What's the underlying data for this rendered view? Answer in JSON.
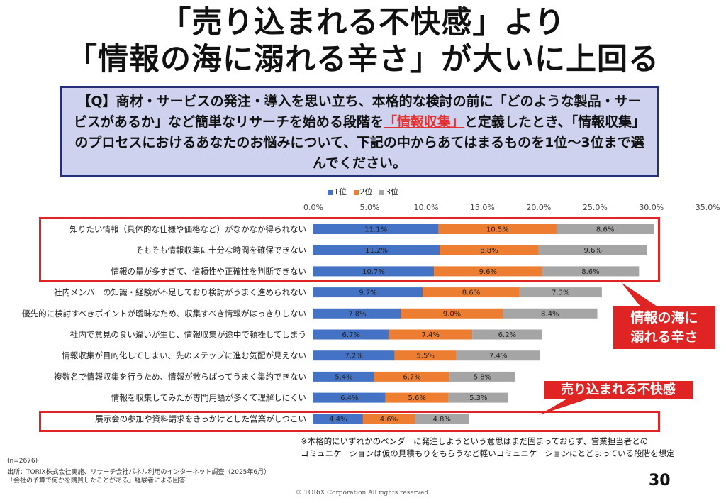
{
  "title_line1": "「売り込まれる不快感」より",
  "title_line2": "「情報の海に溺れる辛さ」が大いに上回る",
  "question": {
    "part1": "【Q】商材・サービスの発注・導入を思い立ち、本格的な検討の前に「どのような製品・サービスがあるか」など簡単なリサーチを始める段階を",
    "highlight": "「情報収集」",
    "part2": "と定義したとき、「情報収集」のプロセスにおけるあなたのお悩みについて、下記の中からあてはまるものを1位～3位まで選んでください。"
  },
  "colors": {
    "rank1": "#4472c4",
    "rank2": "#ed7d31",
    "rank3": "#a5a5a5",
    "highlight_red": "#e02424"
  },
  "callouts": {
    "info_line1": "情報の海に",
    "info_line2": "溺れる辛さ",
    "sales": "売り込まれる不快感"
  },
  "note_line1": "※本格的にいずれかのベンダーに発注しようという意思はまだ固まっておらず、営業担当者との",
  "note_line2": "コミュニケーションは仮の見積もりをもらうなど軽いコミュニケーションにとどまっている段階を想定",
  "sample_size": "(n=2676)",
  "source_line1": "出所：TORiX株式会社実施、リサーチ会社パネル利用のインターネット調査（2025年6月）",
  "source_line2": "「会社の予算で何かを購買したことがある」経験者による回答",
  "page_number": "30",
  "copyright": "© TORiX Corporation All rights reserved.",
  "chart_data": {
    "type": "bar",
    "orientation": "horizontal",
    "stacked": true,
    "xlim": [
      0,
      35
    ],
    "x_ticks": [
      "0.0%",
      "5.0%",
      "10.0%",
      "15.0%",
      "20.0%",
      "25.0%",
      "30.0%",
      "35.0%"
    ],
    "legend_position": "top",
    "categories": [
      "知りたい情報（具体的な仕様や価格など）がなかなか得られない",
      "そもそも情報収集に十分な時間を確保できない",
      "情報の量が多すぎて、信頼性や正確性を判断できない",
      "社内メンバーの知識・経験が不足しており検討がうまく進められない",
      "優先的に検討すべきポイントが曖昧なため、収集すべき情報がはっきりしない",
      "社内で意見の食い違いが生じ、情報収集が途中で頓挫してしまう",
      "情報収集が目的化してしまい、先のステップに進む気配が見えない",
      "複数名で情報収集を行うため、情報が散らばってうまく集約できない",
      "情報を収集してみたが専門用語が多くて理解しにくい",
      "展示会の参加や資料請求をきっかけとした営業がしつこい"
    ],
    "series": [
      {
        "name": "1位",
        "color": "#4472c4",
        "values": [
          11.1,
          11.2,
          10.7,
          9.7,
          7.8,
          6.7,
          7.2,
          5.4,
          6.4,
          4.4
        ],
        "labels": [
          "11.1%",
          "11.2%",
          "10.7%",
          "9.7%",
          "7.8%",
          "6.7%",
          "7.2%",
          "5.4%",
          "6.4%",
          "4.4%"
        ]
      },
      {
        "name": "2位",
        "color": "#ed7d31",
        "values": [
          10.5,
          8.8,
          9.6,
          8.6,
          9.0,
          7.4,
          5.5,
          6.7,
          5.6,
          4.6
        ],
        "labels": [
          "10.5%",
          "8.8%",
          "9.6%",
          "8.6%",
          "9.0%",
          "7.4%",
          "5.5%",
          "6.7%",
          "5.6%",
          "4.6%"
        ]
      },
      {
        "name": "3位",
        "color": "#a5a5a5",
        "values": [
          8.6,
          9.6,
          8.6,
          7.3,
          8.4,
          6.2,
          7.4,
          5.8,
          5.3,
          4.8
        ],
        "labels": [
          "8.6%",
          "9.6%",
          "8.6%",
          "7.3%",
          "8.4%",
          "6.2%",
          "7.4%",
          "5.8%",
          "5.3%",
          "4.8%"
        ]
      }
    ]
  }
}
